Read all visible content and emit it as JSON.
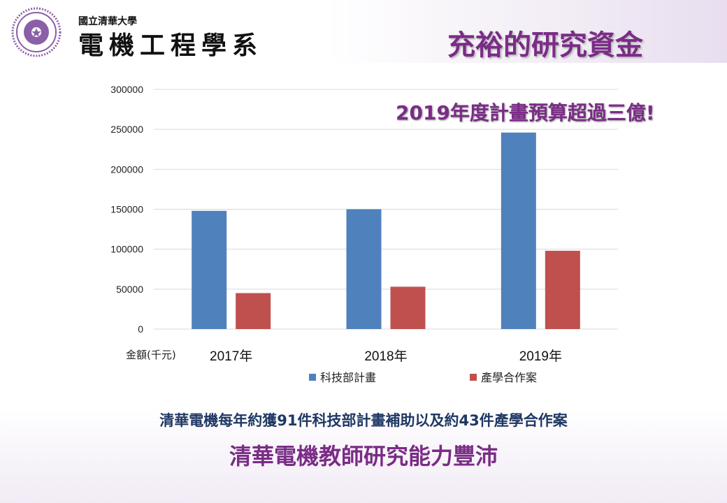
{
  "header": {
    "logo_small": "國立清華大學",
    "logo_big": "電機工程學系",
    "title": "充裕的研究資金"
  },
  "callout": "2019年度計畫預算超過三億!",
  "footer": {
    "line1": "清華電機每年約獲91件科技部計畫補助以及約43件產學合作案",
    "line2": "清華電機教師研究能力豐沛"
  },
  "colors": {
    "accent": "#7a2c86",
    "series1": "#4f81bd",
    "series2": "#c0504d"
  },
  "chart_data": {
    "type": "bar",
    "categories": [
      "2017年",
      "2018年",
      "2019年"
    ],
    "series": [
      {
        "name": "科技部計畫",
        "values": [
          148000,
          150000,
          246000
        ]
      },
      {
        "name": "產學合作案",
        "values": [
          45000,
          53000,
          98000
        ]
      }
    ],
    "ylabel": "金額(千元)",
    "ylim": [
      0,
      300000
    ],
    "yticks": [
      0,
      50000,
      100000,
      150000,
      200000,
      250000,
      300000
    ],
    "grid": true,
    "legend": "bottom"
  }
}
